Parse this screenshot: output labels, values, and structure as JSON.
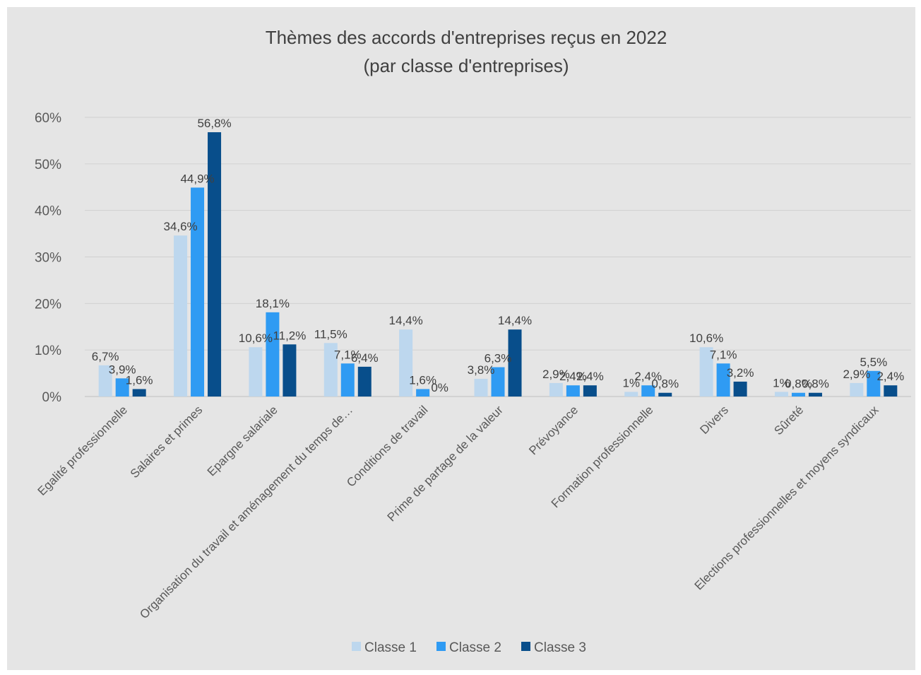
{
  "chart_data": {
    "type": "bar",
    "title": "Thèmes des accords d'entreprises reçus en 2022",
    "subtitle": "(par classe d'entreprises)",
    "categories": [
      "Egalité professionnelle",
      "Salaires et primes",
      "Epargne salariale",
      "Organisation du travail et aménagement du temps de…",
      "Conditions de travail",
      "Prime de partage de la valeur",
      "Prévoyance",
      "Formation professionnelle",
      "Divers",
      "Sûreté",
      "Elections professionnelles et moyens syndicaux"
    ],
    "series": [
      {
        "name": "Classe 1",
        "color": "#bdd7ee",
        "values": [
          6.7,
          34.6,
          10.6,
          11.5,
          14.4,
          3.8,
          2.9,
          1,
          10.6,
          1,
          2.9
        ],
        "labels": [
          "6,7%",
          "34,6%",
          "10,6%",
          "11,5%",
          "14,4%",
          "3,8%",
          "2,9%",
          "1%",
          "10,6%",
          "1%",
          "2,9%"
        ]
      },
      {
        "name": "Classe 2",
        "color": "#2f9bf3",
        "values": [
          3.9,
          44.9,
          18.1,
          7.1,
          1.6,
          6.3,
          2.4,
          2.4,
          7.1,
          0.8,
          5.5
        ],
        "labels": [
          "3,9%",
          "44,9%",
          "18,1%",
          "7,1%",
          "1,6%",
          "6,3%",
          "2,4%",
          "2,4%",
          "7,1%",
          "0,8%",
          "5,5%"
        ]
      },
      {
        "name": "Classe 3",
        "color": "#084e8b",
        "values": [
          1.6,
          56.8,
          11.2,
          6.4,
          0,
          14.4,
          2.4,
          0.8,
          3.2,
          0.8,
          2.4
        ],
        "labels": [
          "1,6%",
          "56,8%",
          "11,2%",
          "6,4%",
          "0%",
          "14,4%",
          "2,4%",
          "0,8%",
          "3,2%",
          "0,8%",
          "2,4%"
        ]
      }
    ],
    "yticks": [
      "0%",
      "10%",
      "20%",
      "30%",
      "40%",
      "50%",
      "60%"
    ],
    "ylim": [
      0,
      60
    ],
    "xlabel": "",
    "ylabel": "",
    "grid": true,
    "legend": "bottom"
  }
}
